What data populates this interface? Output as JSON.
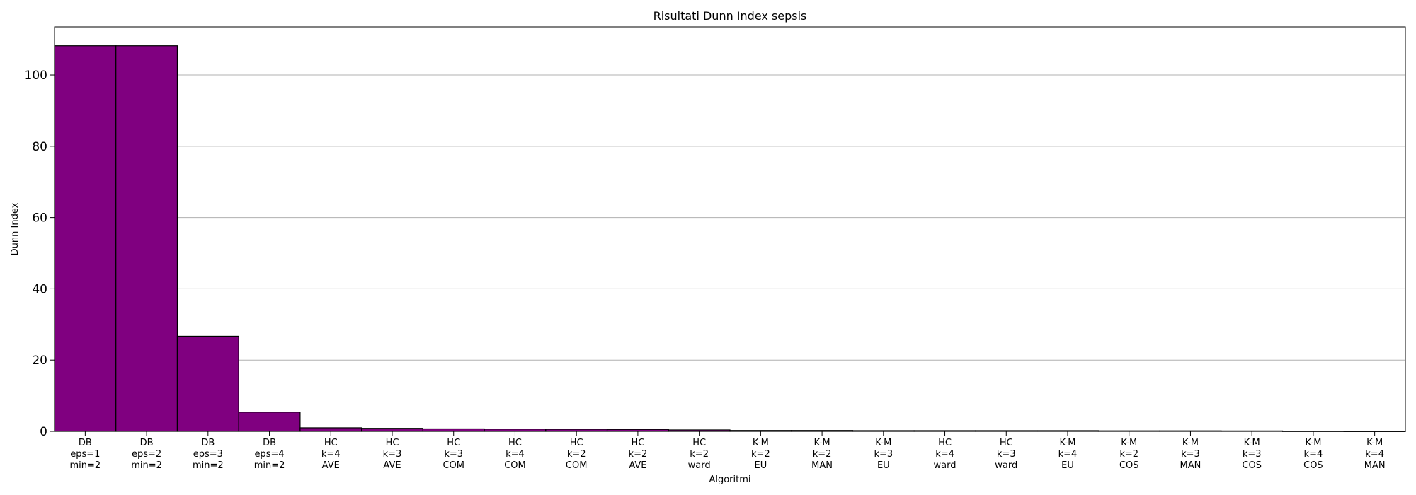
{
  "chart_data": {
    "type": "bar",
    "title": "Risultati Dunn Index sepsis",
    "xlabel": "Algoritmi",
    "ylabel": "Dunn Index",
    "ylim": [
      0,
      113.5
    ],
    "yticks": [
      0,
      20,
      40,
      60,
      80,
      100
    ],
    "grid": "y",
    "colors": {
      "bar": "#800080",
      "edge": "#000000",
      "grid": "#b0b0b0"
    },
    "categories": [
      [
        "DB",
        "eps=1",
        "min=2"
      ],
      [
        "DB",
        "eps=2",
        "min=2"
      ],
      [
        "DB",
        "eps=3",
        "min=2"
      ],
      [
        "DB",
        "eps=4",
        "min=2"
      ],
      [
        "HC",
        "k=4",
        "AVE"
      ],
      [
        "HC",
        "k=3",
        "AVE"
      ],
      [
        "HC",
        "k=3",
        "COM"
      ],
      [
        "HC",
        "k=4",
        "COM"
      ],
      [
        "HC",
        "k=2",
        "COM"
      ],
      [
        "HC",
        "k=2",
        "AVE"
      ],
      [
        "HC",
        "k=2",
        "ward"
      ],
      [
        "K-M",
        "k=2",
        "EU"
      ],
      [
        "K-M",
        "k=2",
        "MAN"
      ],
      [
        "K-M",
        "k=3",
        "EU"
      ],
      [
        "HC",
        "k=4",
        "ward"
      ],
      [
        "HC",
        "k=3",
        "ward"
      ],
      [
        "K-M",
        "k=4",
        "EU"
      ],
      [
        "K-M",
        "k=2",
        "COS"
      ],
      [
        "K-M",
        "k=3",
        "MAN"
      ],
      [
        "K-M",
        "k=3",
        "COS"
      ],
      [
        "K-M",
        "k=4",
        "COS"
      ],
      [
        "K-M",
        "k=4",
        "MAN"
      ]
    ],
    "values": [
      108.2,
      108.2,
      26.7,
      5.4,
      1.0,
      0.85,
      0.7,
      0.65,
      0.6,
      0.55,
      0.4,
      0.25,
      0.25,
      0.2,
      0.2,
      0.2,
      0.2,
      0.15,
      0.15,
      0.12,
      0.05,
      0.03
    ]
  }
}
